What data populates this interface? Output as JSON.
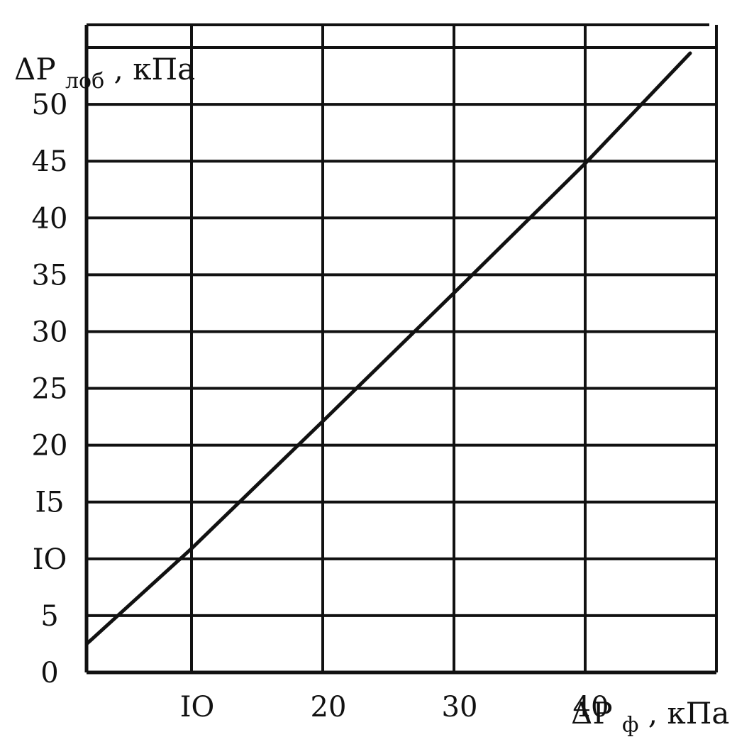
{
  "chart_data": {
    "type": "line",
    "xlabel": {
      "prefix": "ΔP",
      "subscript": "ф",
      "unit": ", кПа"
    },
    "ylabel": {
      "prefix": "ΔP",
      "subscript": "лоб",
      "unit": ", кПа"
    },
    "xlim": [
      2,
      50
    ],
    "ylim": [
      0,
      57
    ],
    "x_ticks": [
      10,
      20,
      30,
      40
    ],
    "x_tick_labels": [
      "IO",
      "20",
      "30",
      "40"
    ],
    "y_ticks": [
      0,
      5,
      10,
      15,
      20,
      25,
      30,
      35,
      40,
      45,
      50
    ],
    "y_tick_labels": [
      "0",
      "5",
      "IO",
      "I5",
      "20",
      "25",
      "30",
      "35",
      "40",
      "45",
      "50"
    ],
    "grid": true,
    "series": [
      {
        "x": [
          2,
          10,
          20,
          30,
          40,
          48
        ],
        "y": [
          2.5,
          10.9,
          22.1,
          33.4,
          44.8,
          54.5
        ]
      }
    ]
  }
}
